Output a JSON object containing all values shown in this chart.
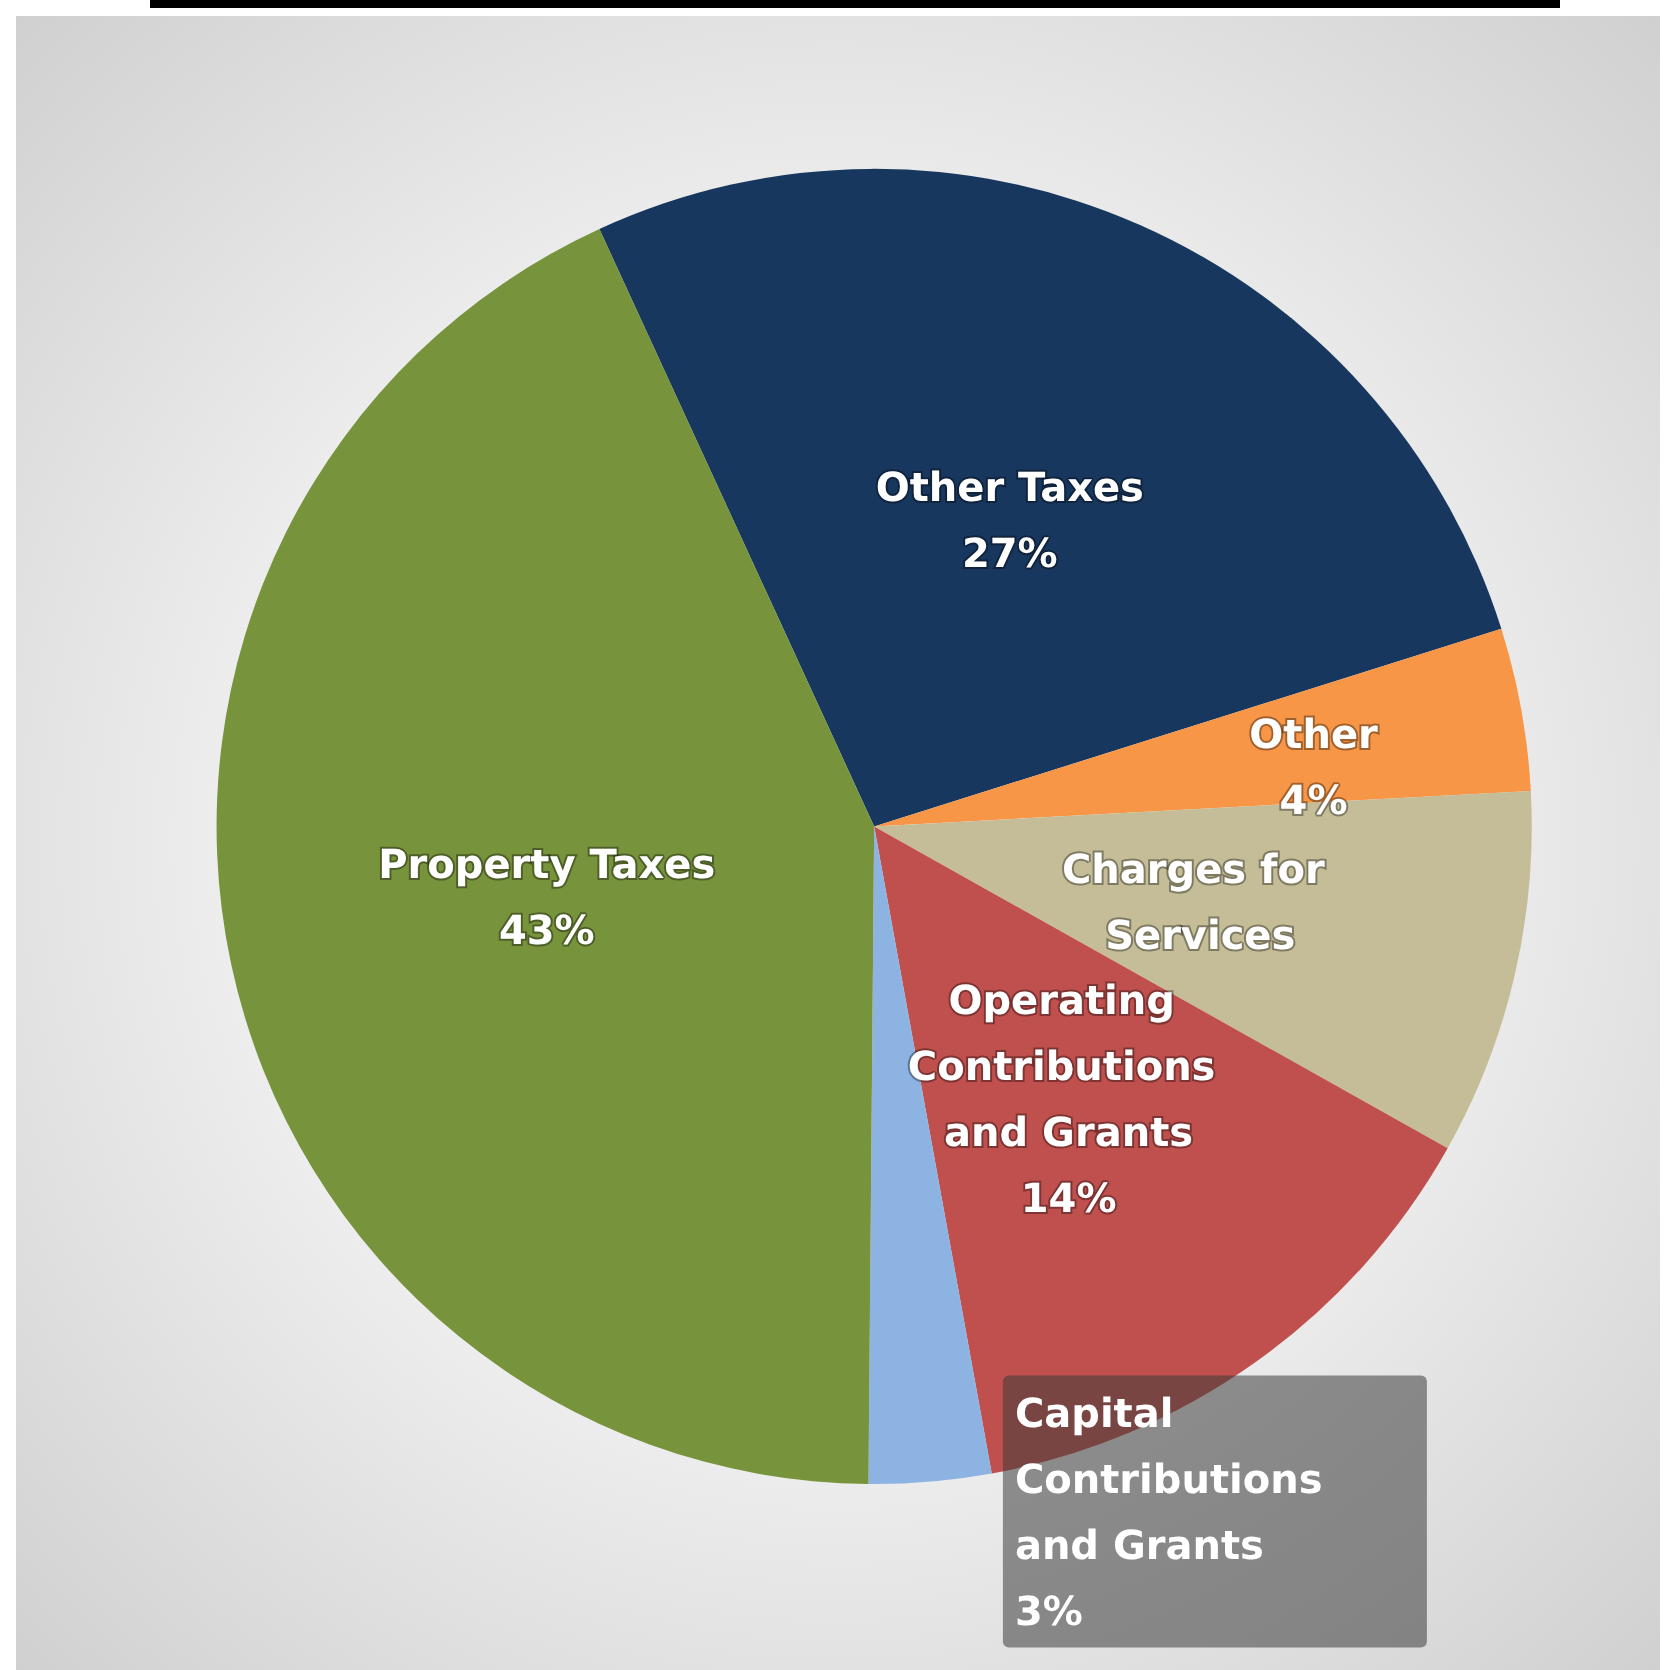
{
  "chart_data": {
    "type": "pie",
    "categories": [
      "Other Taxes",
      "Other",
      "Charges for Services",
      "Operating Contributions and Grants",
      "Capital Contributions and Grants",
      "Property Taxes"
    ],
    "values": [
      27,
      4,
      9,
      14,
      3,
      43
    ],
    "colors": [
      "#17375e",
      "#f79646",
      "#c4bd97",
      "#c0504d",
      "#8db3e2",
      "#77933c"
    ],
    "value_labels": [
      "27%",
      "4%",
      null,
      "14%",
      "3%",
      "43%"
    ],
    "legend": false
  }
}
